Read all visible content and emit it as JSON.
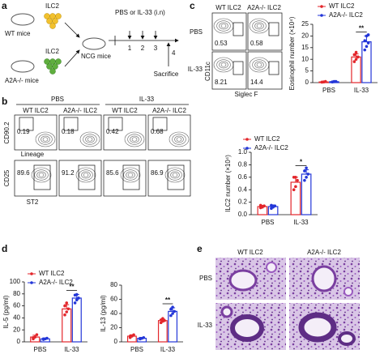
{
  "panels": {
    "a": {
      "letter": "a",
      "wt_cell": "ILC2",
      "wt_mice": "WT mice",
      "ko_cell": "ILC2",
      "ko_mice": "A2A-/- mice",
      "recipient": "NCG mice",
      "treatment": "PBS or IL-33 (i.n)",
      "days": [
        "1",
        "2",
        "3",
        "4"
      ],
      "endpoint": "Sacrifice"
    },
    "b": {
      "letter": "b",
      "groups": [
        "PBS",
        "IL-33"
      ],
      "columns": [
        "WT ILC2",
        "A2A-/- ILC2",
        "WT ILC2",
        "A2A-/- ILC2"
      ],
      "row1_y": "CD90.2",
      "row1_x": "Lineage",
      "row1_values": [
        0.19,
        0.18,
        0.42,
        0.68
      ],
      "row2_y": "CD25",
      "row2_x": "ST2",
      "row2_values": [
        89.6,
        91.2,
        85.6,
        86.9
      ]
    },
    "c": {
      "letter": "c",
      "columns": [
        "WT ILC2",
        "A2A-/- ILC2"
      ],
      "rows": [
        "PBS",
        "IL-33"
      ],
      "values": [
        [
          0.53,
          0.58
        ],
        [
          8.21,
          14.4
        ]
      ],
      "y_label": "CD11c",
      "x_label": "Siglec F"
    },
    "d": {
      "letter": "d"
    },
    "e": {
      "letter": "e",
      "columns": [
        "WT ILC2",
        "A2A-/- ILC2"
      ],
      "rows": [
        "PBS",
        "IL-33"
      ]
    }
  },
  "chart_data": [
    {
      "type": "bar",
      "ylabel": "Eosinophil number (×10⁴)",
      "categories": [
        "PBS",
        "IL-33"
      ],
      "ylim": [
        0,
        25
      ],
      "yticks": [
        0,
        5,
        10,
        15,
        20,
        25
      ],
      "legend": true,
      "significance": "**",
      "series": [
        {
          "name": "WT ILC2",
          "color": "#e3262b",
          "values": [
            0.3,
            11
          ],
          "errors": [
            0.2,
            1.3
          ],
          "points": [
            [
              0.2,
              0.3,
              0.5,
              0.2,
              0.3
            ],
            [
              9,
              10,
              11,
              12,
              13,
              11
            ]
          ]
        },
        {
          "name": "A2A-/- ILC2",
          "color": "#2336d8",
          "values": [
            0.4,
            17.5
          ],
          "errors": [
            0.2,
            2.5
          ],
          "points": [
            [
              0.3,
              0.4,
              0.5,
              0.3,
              0.5
            ],
            [
              14,
              15.5,
              17,
              18,
              20,
              20.5
            ]
          ]
        }
      ]
    },
    {
      "type": "bar",
      "ylabel": "ILC2 number (×10⁴)",
      "categories": [
        "PBS",
        "IL-33"
      ],
      "ylim": [
        0,
        1
      ],
      "yticks": [
        {
          "value": 0,
          "label": "0.0"
        },
        0.2,
        0.4,
        0.6,
        0.8,
        {
          "value": 1,
          "label": "1.0"
        }
      ],
      "legend": true,
      "significance": "*",
      "series": [
        {
          "name": "WT ILC2",
          "color": "#e3262b",
          "values": [
            0.13,
            0.52
          ],
          "errors": [
            0.02,
            0.08
          ],
          "points": [
            [
              0.11,
              0.12,
              0.14,
              0.15,
              0.13
            ],
            [
              0.4,
              0.45,
              0.55,
              0.6,
              0.6
            ]
          ]
        },
        {
          "name": "A2A-/- ILC2",
          "color": "#2336d8",
          "values": [
            0.13,
            0.65
          ],
          "errors": [
            0.02,
            0.07
          ],
          "points": [
            [
              0.1,
              0.12,
              0.14,
              0.15,
              0.14
            ],
            [
              0.55,
              0.6,
              0.65,
              0.7,
              0.75
            ]
          ]
        }
      ]
    },
    {
      "type": "bar",
      "ylabel": "IL-5 (pg/ml)",
      "categories": [
        "PBS",
        "IL-33"
      ],
      "ylim": [
        0,
        100
      ],
      "yticks": [
        0,
        20,
        40,
        60,
        80,
        100
      ],
      "legend": true,
      "significance": "**",
      "series": [
        {
          "name": "WT ILC2",
          "color": "#e3262b",
          "values": [
            8,
            55
          ],
          "errors": [
            3,
            7
          ],
          "points": [
            [
              5,
              8,
              12,
              7
            ],
            [
              45,
              50,
              55,
              60,
              65
            ]
          ]
        },
        {
          "name": "A2A-/- ILC2",
          "color": "#2336d8",
          "values": [
            5,
            73
          ],
          "errors": [
            1,
            6
          ],
          "points": [
            [
              4,
              5,
              6,
              5
            ],
            [
              65,
              70,
              73,
              78,
              79
            ]
          ]
        }
      ]
    },
    {
      "type": "bar",
      "ylabel": "IL-13 (pg/ml)",
      "categories": [
        "PBS",
        "IL-33"
      ],
      "ylim": [
        0,
        80
      ],
      "yticks": [
        0,
        20,
        40,
        60,
        80
      ],
      "legend": false,
      "significance": "**",
      "series": [
        {
          "name": "WT ILC2",
          "color": "#e3262b",
          "values": [
            8,
            30
          ],
          "errors": [
            2,
            2
          ],
          "points": [
            [
              6,
              8,
              10,
              8
            ],
            [
              27,
              29,
              30,
              31,
              33
            ]
          ]
        },
        {
          "name": "A2A-/- ILC2",
          "color": "#2336d8",
          "values": [
            5,
            43
          ],
          "errors": [
            1,
            5
          ],
          "points": [
            [
              4,
              5,
              6,
              5
            ],
            [
              37,
              40,
              43,
              46,
              49
            ]
          ]
        }
      ]
    }
  ]
}
